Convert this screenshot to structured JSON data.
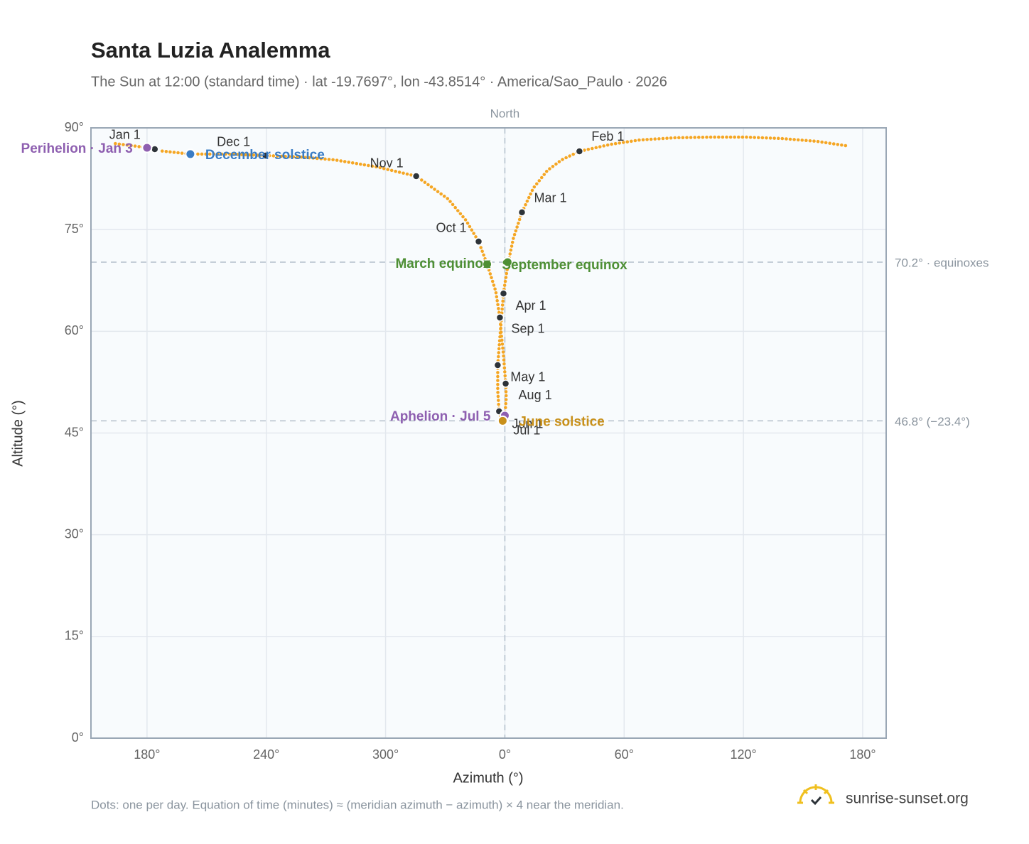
{
  "chart_data": {
    "type": "line",
    "title": "Santa Luzia Analemma",
    "subtitle": "The Sun at 12:00 (standard time) · lat -19.7697°, lon -43.8514° · America/Sao_Paulo · 2026",
    "x_label": "Azimuth (°)",
    "y_label": "Altitude (°)",
    "xlim": [
      151.8,
      551.8
    ],
    "ylim": [
      0,
      90
    ],
    "grid": true,
    "xticks": [
      {
        "value": 180,
        "label": "180°"
      },
      {
        "value": 240,
        "label": "240°"
      },
      {
        "value": 300,
        "label": "300°"
      },
      {
        "value": 360,
        "label": "0°"
      },
      {
        "value": 420,
        "label": "60°"
      },
      {
        "value": 480,
        "label": "120°"
      },
      {
        "value": 540,
        "label": "180°"
      }
    ],
    "yticks": [
      {
        "value": 0,
        "label": "0°"
      },
      {
        "value": 15,
        "label": "15°"
      },
      {
        "value": 30,
        "label": "30°"
      },
      {
        "value": 45,
        "label": "45°"
      },
      {
        "value": 60,
        "label": "60°"
      },
      {
        "value": 75,
        "label": "75°"
      },
      {
        "value": 90,
        "label": "90°"
      }
    ],
    "meridian": {
      "value": 360,
      "label": "North"
    },
    "reference_lines": [
      {
        "value": 70.2,
        "label": "70.2° · equinoxes"
      },
      {
        "value": 46.8,
        "label": "46.8° (−23.4°)"
      }
    ],
    "series": [
      {
        "color": "#f5a623",
        "x": [
          183.9,
          180.0,
          172.5,
          163.6,
          null,
          531.4,
          517.1,
          499.3,
          481.4,
          463.6,
          445.7,
          427.9,
          413.6,
          397.5,
          388.6,
          381.4,
          374.3,
          368.6,
          364.3,
          361.8,
          360.0,
          359.3,
          357.9,
          356.8,
          356.4,
          356.4,
          357.1,
          358.2,
          358.9,
          360.0,
          360.7,
          360.4,
          359.3,
          358.2,
          357.5,
          355.4,
          351.1,
          346.8,
          340.4,
          331.4,
          315.4,
          295.7,
          274.3,
          256.4,
          239.6,
          220.7,
          201.8,
          185.7
        ],
        "y": [
          86.86,
          87.07,
          87.38,
          87.7,
          null,
          87.38,
          88.01,
          88.43,
          88.64,
          88.64,
          88.54,
          88.22,
          87.59,
          86.54,
          85.29,
          83.72,
          81.1,
          77.54,
          73.76,
          70.3,
          66.95,
          65.58,
          60.67,
          56.47,
          55.01,
          51.24,
          48.2,
          47.04,
          46.73,
          47.57,
          50.19,
          52.28,
          56.47,
          59.62,
          62.03,
          65.91,
          69.89,
          73.24,
          76.38,
          79.53,
          82.88,
          84.24,
          85.29,
          85.71,
          85.92,
          86.13,
          86.13,
          86.65
        ]
      }
    ],
    "months": {
      "color": "#2d3339",
      "labels": [
        "Jan 1",
        "Feb 1",
        "Mar 1",
        "Apr 1",
        "May 1",
        "Jun 1",
        "Jul 1",
        "Aug 1",
        "Sep 1",
        "Oct 1",
        "Nov 1",
        "Dec 1"
      ],
      "x": [
        183.9,
        397.5,
        368.6,
        359.3,
        356.4,
        357.1,
        358.9,
        360.4,
        357.5,
        346.8,
        315.4,
        239.6
      ],
      "y": [
        86.86,
        86.54,
        77.54,
        65.58,
        55.01,
        48.2,
        46.73,
        52.28,
        62.03,
        73.24,
        82.88,
        85.92
      ]
    },
    "events": [
      {
        "label": "Perihelion · Jan 3",
        "x": 180.0,
        "y": 87.07,
        "color": "#8e5fb0"
      },
      {
        "label": "December solstice",
        "x": 201.8,
        "y": 86.13,
        "color": "#3a7cc4"
      },
      {
        "label": "March equinox",
        "x": 351.1,
        "y": 69.89,
        "color": "#4e8f35"
      },
      {
        "label": "September equinox",
        "x": 361.4,
        "y": 70.2,
        "color": "#4e8f35"
      },
      {
        "label": "Aphelion · Jul 5",
        "x": 360.0,
        "y": 47.57,
        "color": "#8e5fb0"
      },
      {
        "label": "June solstice",
        "x": 358.9,
        "y": 46.8,
        "color": "#c8901a"
      }
    ]
  },
  "footer": {
    "note": "Dots: one per day. Equation of time (minutes) ≈ (meridian azimuth − azimuth) × 4 near the meridian.",
    "brand": "sunrise-sunset.org"
  }
}
